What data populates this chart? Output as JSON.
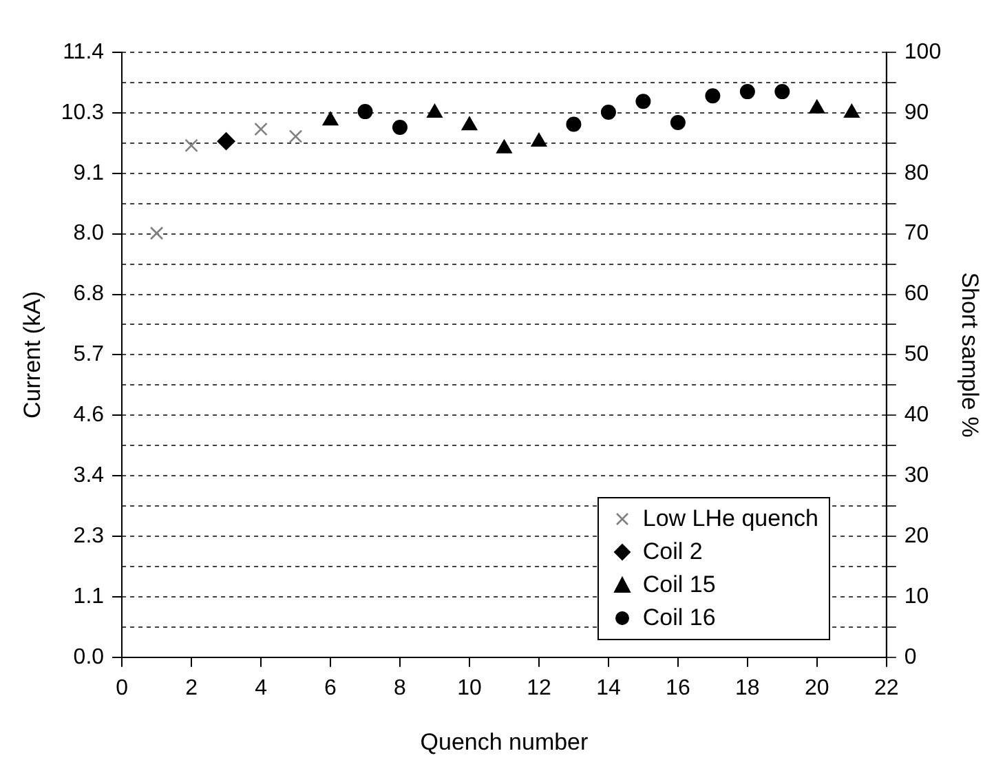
{
  "chart_data": {
    "type": "scatter",
    "xlabel": "Quench number",
    "ylabel": "Current (kA)",
    "y2label": "Short sample %",
    "series": [
      {
        "name": "Low LHe quench",
        "color": "#808080",
        "marker": "cross",
        "axis": "y2",
        "x": [
          1,
          2,
          4,
          5
        ],
        "values": [
          70.1,
          84.6,
          87.3,
          86.1
        ]
      },
      {
        "name": "Coil 2",
        "color": "#000000",
        "marker": "diamond",
        "axis": "y2",
        "x": [
          3
        ],
        "values": [
          85.3
        ]
      },
      {
        "name": "Coil 15",
        "color": "#000000",
        "marker": "triangle",
        "axis": "y2",
        "x": [
          6,
          9,
          10,
          11,
          12,
          20,
          21
        ],
        "values": [
          88.7,
          90.0,
          87.9,
          84.1,
          85.2,
          90.7,
          90.0
        ]
      },
      {
        "name": "Coil 16",
        "color": "#000000",
        "marker": "circle",
        "axis": "y2",
        "x": [
          7,
          8,
          13,
          14,
          15,
          16,
          17,
          18,
          19
        ],
        "values": [
          90.2,
          87.6,
          88.1,
          90.1,
          91.9,
          88.4,
          92.8,
          93.5,
          93.5
        ]
      }
    ],
    "xlim": [
      0,
      22
    ],
    "xticks": [
      0,
      2,
      4,
      6,
      8,
      10,
      12,
      14,
      16,
      18,
      20,
      22
    ],
    "ylim": [
      0,
      11.4
    ],
    "yticks": [
      {
        "value": 0,
        "label": "0.0"
      },
      {
        "value": 1.14,
        "label": "1.1"
      },
      {
        "value": 2.28,
        "label": "2.3"
      },
      {
        "value": 3.42,
        "label": "3.4"
      },
      {
        "value": 4.56,
        "label": "4.6"
      },
      {
        "value": 5.7,
        "label": "5.7"
      },
      {
        "value": 6.84,
        "label": "6.8"
      },
      {
        "value": 7.98,
        "label": "8.0"
      },
      {
        "value": 9.12,
        "label": "9.1"
      },
      {
        "value": 10.26,
        "label": "10.3"
      },
      {
        "value": 11.4,
        "label": "11.4"
      }
    ],
    "y2lim": [
      0,
      100
    ],
    "y2ticks": [
      0,
      {
        "value": 5,
        "label": null
      },
      10,
      {
        "value": 15,
        "label": null
      },
      20,
      {
        "value": 25,
        "label": null
      },
      30,
      {
        "value": 35,
        "label": null
      },
      40,
      {
        "value": 45,
        "label": null
      },
      50,
      {
        "value": 55,
        "label": null
      },
      60,
      {
        "value": 65,
        "label": null
      },
      70,
      {
        "value": 75,
        "label": null
      },
      80,
      {
        "value": 85,
        "label": null
      },
      90,
      {
        "value": 95,
        "label": null
      },
      100
    ],
    "grid": "y2",
    "legend": "bottom right"
  }
}
